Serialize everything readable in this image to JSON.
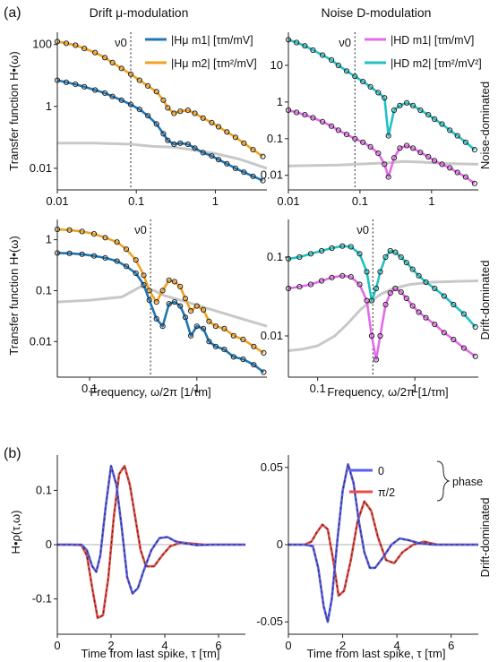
{
  "figure": {
    "panel_labels": [
      "(a)",
      "(b)"
    ],
    "column_titles": [
      "Drift μ-modulation",
      "Noise D-modulation"
    ],
    "row_labels": [
      "Noise-dominated",
      "Drift-dominated",
      "Drift-dominated"
    ],
    "ylabel_top": "Transfer function H•(ω)",
    "ylabel_bottom": "Transfer function H•(ω)",
    "ylabel_kernel": "H•ρ(τ,ω)",
    "xlabel_freq": "Frequency, ω/2π [1/τm]",
    "xlabel_time": "Time from last spike, τ [τm]",
    "nu0_label": "ν0",
    "legend_mu": [
      {
        "label": "|Hμ m1| [τm/mV]",
        "color": "#1f77b4"
      },
      {
        "label": "|Hμ m2| [τm²/mV]",
        "color": "#f0a21e"
      }
    ],
    "legend_D": [
      {
        "label": "|HD m1| [τm/mV]",
        "color": "#e36bea"
      },
      {
        "label": "|HD m2| [τm²/mV²]",
        "color": "#22c1c3"
      }
    ],
    "legend_phase": {
      "entries": [
        {
          "label": "0",
          "color": "#5b5ff0"
        },
        {
          "label": "π/2",
          "color": "#ef4a44"
        }
      ],
      "group_label": "phase"
    },
    "colors": {
      "blue": "#1f77b4",
      "orange": "#f0a21e",
      "magenta": "#e36bea",
      "cyan": "#22c1c3",
      "gray": "#c8c8c8",
      "kblue": "#5b5ff0",
      "kred": "#ef4a44"
    }
  },
  "chart_data": [
    {
      "id": "a-mu-noise",
      "type": "line",
      "title": "Drift μ-modulation",
      "xscale": "log",
      "yscale": "log",
      "xlim": [
        0.01,
        4.5
      ],
      "ylim": [
        0.002,
        250
      ],
      "xticks": [
        "0.01",
        "0.1",
        "1"
      ],
      "yticks": [
        "0.01",
        "1",
        "100"
      ],
      "nu0": 0.085,
      "series": [
        {
          "name": "|Hμ m1| [τm/mV]",
          "x": [
            0.01,
            0.013,
            0.017,
            0.022,
            0.03,
            0.04,
            0.05,
            0.065,
            0.085,
            0.11,
            0.14,
            0.18,
            0.22,
            0.25,
            0.3,
            0.36,
            0.45,
            0.55,
            0.7,
            0.9,
            1.1,
            1.4,
            1.8,
            2.3,
            3,
            4
          ],
          "y": [
            7,
            6,
            5.2,
            4.3,
            3.4,
            2.7,
            2.1,
            1.6,
            1.15,
            0.8,
            0.5,
            0.27,
            0.13,
            0.08,
            0.06,
            0.065,
            0.06,
            0.045,
            0.032,
            0.025,
            0.019,
            0.014,
            0.01,
            0.0075,
            0.0055,
            0.004
          ]
        },
        {
          "name": "|Hμ m2| [τm²/mV]",
          "x": [
            0.01,
            0.013,
            0.017,
            0.022,
            0.03,
            0.04,
            0.05,
            0.065,
            0.085,
            0.11,
            0.14,
            0.18,
            0.22,
            0.25,
            0.3,
            0.36,
            0.45,
            0.55,
            0.7,
            0.9,
            1.1,
            1.4,
            1.8,
            2.3,
            3,
            4
          ],
          "y": [
            125,
            110,
            95,
            75,
            55,
            38,
            26,
            17,
            11,
            7,
            4.6,
            3,
            1.6,
            0.9,
            0.6,
            0.7,
            0.75,
            0.6,
            0.42,
            0.3,
            0.22,
            0.15,
            0.1,
            0.065,
            0.04,
            0.024
          ]
        },
        {
          "name": "",
          "x": [
            0.01,
            0.03,
            0.085,
            0.15,
            0.2,
            0.3,
            0.5,
            1,
            2,
            4.5
          ],
          "y": [
            0.065,
            0.065,
            0.06,
            0.052,
            0.05,
            0.048,
            0.04,
            0.03,
            0.02,
            0.01
          ]
        }
      ]
    },
    {
      "id": "a-D-noise",
      "type": "line",
      "title": "Noise D-modulation",
      "xscale": "log",
      "yscale": "log",
      "xlim": [
        0.01,
        4.5
      ],
      "ylim": [
        0.004,
        80
      ],
      "xticks": [
        "0.01",
        "0.1",
        "1"
      ],
      "yticks": [
        "0.01",
        "0.1",
        "1",
        "10"
      ],
      "nu0": 0.085,
      "series": [
        {
          "name": "|HD m1| [τm/mV]",
          "x": [
            0.01,
            0.013,
            0.017,
            0.022,
            0.03,
            0.04,
            0.05,
            0.065,
            0.085,
            0.11,
            0.14,
            0.18,
            0.22,
            0.25,
            0.3,
            0.36,
            0.45,
            0.55,
            0.7,
            0.9,
            1.1,
            1.4,
            1.8,
            2.3,
            3,
            4
          ],
          "y": [
            0.6,
            0.52,
            0.45,
            0.37,
            0.29,
            0.22,
            0.17,
            0.13,
            0.1,
            0.08,
            0.06,
            0.04,
            0.02,
            0.009,
            0.03,
            0.055,
            0.065,
            0.055,
            0.042,
            0.032,
            0.025,
            0.02,
            0.016,
            0.012,
            0.009,
            0.006
          ]
        },
        {
          "name": "|HD m2| [τm²/mV²]",
          "x": [
            0.01,
            0.013,
            0.017,
            0.022,
            0.03,
            0.04,
            0.05,
            0.065,
            0.085,
            0.11,
            0.14,
            0.18,
            0.22,
            0.25,
            0.3,
            0.36,
            0.45,
            0.55,
            0.7,
            0.9,
            1.1,
            1.4,
            1.8,
            2.3,
            3,
            4
          ],
          "y": [
            50,
            42,
            34,
            26,
            19,
            14,
            10,
            7,
            5,
            3.6,
            2.6,
            1.8,
            1.3,
            0.12,
            0.6,
            0.8,
            0.95,
            0.8,
            0.6,
            0.45,
            0.34,
            0.25,
            0.17,
            0.12,
            0.08,
            0.05
          ]
        },
        {
          "name": "",
          "x": [
            0.01,
            0.05,
            0.15,
            0.25,
            0.4,
            0.7,
            1.5,
            4.5
          ],
          "y": [
            0.018,
            0.019,
            0.021,
            0.022,
            0.024,
            0.023,
            0.021,
            0.02
          ]
        }
      ]
    },
    {
      "id": "a-mu-drift",
      "type": "line",
      "xscale": "log",
      "yscale": "log",
      "xlim": [
        0.05,
        4.5
      ],
      "ylim": [
        0.002,
        2.5
      ],
      "xticks": [
        "0.1",
        "1"
      ],
      "yticks": [
        "0.01",
        "0.1",
        "1"
      ],
      "nu0": 0.37,
      "series": [
        {
          "name": "|Hμ m1| [τm/mV]",
          "x": [
            0.05,
            0.065,
            0.085,
            0.11,
            0.14,
            0.18,
            0.22,
            0.27,
            0.32,
            0.36,
            0.42,
            0.48,
            0.55,
            0.62,
            0.7,
            0.78,
            0.88,
            1,
            1.15,
            1.3,
            1.5,
            1.8,
            2.2,
            2.7,
            3.4,
            4.2
          ],
          "y": [
            0.55,
            0.54,
            0.52,
            0.48,
            0.44,
            0.38,
            0.3,
            0.22,
            0.13,
            0.065,
            0.028,
            0.02,
            0.055,
            0.06,
            0.05,
            0.03,
            0.013,
            0.02,
            0.018,
            0.01,
            0.008,
            0.007,
            0.005,
            0.0045,
            0.0035,
            0.0025
          ]
        },
        {
          "name": "|Hμ m2| [τm²/mV]",
          "x": [
            0.05,
            0.065,
            0.085,
            0.11,
            0.14,
            0.18,
            0.22,
            0.27,
            0.32,
            0.36,
            0.42,
            0.48,
            0.55,
            0.62,
            0.7,
            0.78,
            0.88,
            1,
            1.15,
            1.3,
            1.5,
            1.8,
            2.2,
            2.7,
            3.4,
            4.2
          ],
          "y": [
            1.6,
            1.55,
            1.45,
            1.3,
            1.1,
            0.9,
            0.65,
            0.4,
            0.2,
            0.1,
            0.06,
            0.1,
            0.16,
            0.15,
            0.12,
            0.07,
            0.04,
            0.05,
            0.042,
            0.025,
            0.02,
            0.018,
            0.013,
            0.011,
            0.008,
            0.006
          ]
        },
        {
          "name": "",
          "x": [
            0.05,
            0.1,
            0.2,
            0.3,
            0.4,
            0.5,
            0.8,
            1.5,
            4.5
          ],
          "y": [
            0.06,
            0.065,
            0.075,
            0.12,
            0.1,
            0.08,
            0.06,
            0.04,
            0.02
          ]
        }
      ]
    },
    {
      "id": "a-D-drift",
      "type": "line",
      "xscale": "log",
      "yscale": "log",
      "xlim": [
        0.05,
        4.5
      ],
      "ylim": [
        0.003,
        0.3
      ],
      "xticks": [
        "0.1",
        "1"
      ],
      "yticks": [
        "0.01",
        "0.1"
      ],
      "nu0": 0.37,
      "series": [
        {
          "name": "|HD m1| [τm/mV]",
          "x": [
            0.05,
            0.065,
            0.085,
            0.11,
            0.14,
            0.18,
            0.22,
            0.27,
            0.32,
            0.36,
            0.4,
            0.44,
            0.5,
            0.56,
            0.63,
            0.72,
            0.82,
            0.95,
            1.1,
            1.3,
            1.6,
            2,
            2.5,
            3.2,
            4.2
          ],
          "y": [
            0.04,
            0.042,
            0.045,
            0.05,
            0.055,
            0.058,
            0.056,
            0.045,
            0.028,
            0.01,
            0.005,
            0.01,
            0.025,
            0.035,
            0.04,
            0.036,
            0.03,
            0.024,
            0.02,
            0.017,
            0.014,
            0.011,
            0.009,
            0.007,
            0.0055
          ]
        },
        {
          "name": "|HD m2| [τm²/mV²]",
          "x": [
            0.05,
            0.065,
            0.085,
            0.11,
            0.14,
            0.18,
            0.22,
            0.27,
            0.32,
            0.36,
            0.4,
            0.44,
            0.5,
            0.56,
            0.63,
            0.72,
            0.82,
            0.95,
            1.1,
            1.3,
            1.6,
            2,
            2.5,
            3.2,
            4.2
          ],
          "y": [
            0.095,
            0.1,
            0.11,
            0.12,
            0.13,
            0.138,
            0.135,
            0.11,
            0.065,
            0.028,
            0.04,
            0.065,
            0.1,
            0.12,
            0.115,
            0.1,
            0.085,
            0.07,
            0.058,
            0.048,
            0.04,
            0.032,
            0.025,
            0.019,
            0.013
          ]
        },
        {
          "name": "",
          "x": [
            0.05,
            0.07,
            0.1,
            0.15,
            0.2,
            0.28,
            0.36,
            0.45,
            0.6,
            0.9,
            1.5,
            2.5,
            4.5
          ],
          "y": [
            0.0065,
            0.0068,
            0.0075,
            0.01,
            0.014,
            0.022,
            0.028,
            0.034,
            0.04,
            0.045,
            0.048,
            0.049,
            0.05
          ]
        }
      ]
    },
    {
      "id": "b-mu",
      "type": "line",
      "xscale": "linear",
      "yscale": "linear",
      "xlim": [
        0,
        7
      ],
      "ylim": [
        -0.165,
        0.165
      ],
      "xticks": [
        "0",
        "2",
        "4",
        "6"
      ],
      "yticks": [
        "-0.1",
        "0",
        "0.1"
      ],
      "series": [
        {
          "name": "0",
          "x": [
            0,
            0.5,
            0.9,
            1.1,
            1.3,
            1.45,
            1.6,
            1.8,
            2,
            2.2,
            2.4,
            2.6,
            2.8,
            3.0,
            3.2,
            3.5,
            3.8,
            4.1,
            4.4,
            4.8,
            5.2,
            5.8,
            7
          ],
          "y": [
            0,
            0,
            0,
            -0.01,
            -0.04,
            -0.05,
            -0.02,
            0.07,
            0.145,
            0.11,
            0.03,
            -0.06,
            -0.09,
            -0.08,
            -0.05,
            -0.01,
            0.012,
            0.014,
            0.006,
            0.002,
            -0.001,
            0,
            0
          ]
        },
        {
          "name": "π/2",
          "x": [
            0,
            0.5,
            0.9,
            1.1,
            1.3,
            1.5,
            1.7,
            1.9,
            2.1,
            2.3,
            2.5,
            2.7,
            2.9,
            3.1,
            3.3,
            3.6,
            3.9,
            4.2,
            4.6,
            5,
            5.5,
            6,
            7
          ],
          "y": [
            0,
            0,
            -0.001,
            -0.02,
            -0.08,
            -0.135,
            -0.13,
            -0.06,
            0.05,
            0.13,
            0.145,
            0.11,
            0.05,
            -0.01,
            -0.04,
            -0.04,
            -0.02,
            -0.003,
            0.004,
            0.002,
            0,
            0,
            0
          ]
        }
      ]
    },
    {
      "id": "b-D",
      "type": "line",
      "xscale": "linear",
      "yscale": "linear",
      "xlim": [
        0,
        7
      ],
      "ylim": [
        -0.058,
        0.058
      ],
      "xticks": [
        "0",
        "2",
        "4",
        "6"
      ],
      "yticks": [
        "-0.05",
        "0",
        "0.05"
      ],
      "series": [
        {
          "name": "0",
          "x": [
            0,
            0.6,
            0.9,
            1.1,
            1.3,
            1.45,
            1.6,
            1.8,
            2,
            2.2,
            2.4,
            2.6,
            2.8,
            3.0,
            3.2,
            3.5,
            3.8,
            4.1,
            4.4,
            4.8,
            5.3,
            6,
            7
          ],
          "y": [
            0,
            0,
            -0.001,
            -0.015,
            -0.04,
            -0.05,
            -0.035,
            0.002,
            0.035,
            0.052,
            0.04,
            0.015,
            -0.005,
            -0.015,
            -0.015,
            -0.008,
            0,
            0.004,
            0.003,
            0.001,
            0,
            0,
            0
          ]
        },
        {
          "name": "π/2",
          "x": [
            0,
            0.6,
            0.85,
            1.05,
            1.25,
            1.45,
            1.65,
            1.85,
            2.05,
            2.3,
            2.55,
            2.8,
            3.05,
            3.3,
            3.6,
            3.9,
            4.2,
            4.6,
            5,
            5.5,
            6,
            7
          ],
          "y": [
            0,
            0,
            0.002,
            0.008,
            0.013,
            0.01,
            -0.01,
            -0.033,
            -0.03,
            -0.01,
            0.015,
            0.028,
            0.022,
            0.005,
            -0.01,
            -0.012,
            -0.005,
            0,
            0.002,
            0,
            0,
            0
          ]
        }
      ]
    }
  ]
}
